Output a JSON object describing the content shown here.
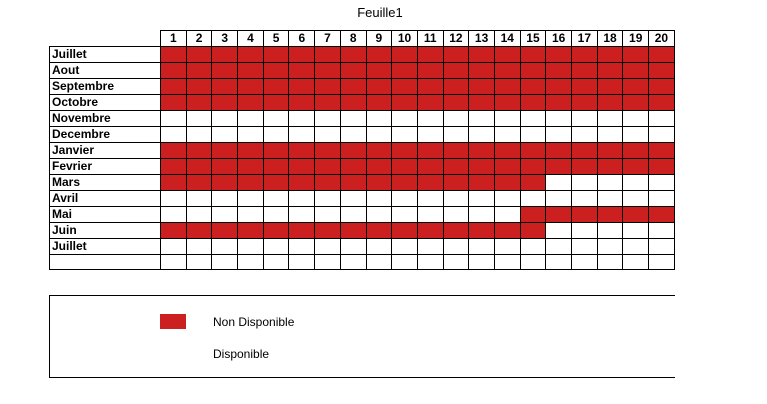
{
  "sheet": {
    "title": "Feuille1"
  },
  "colors": {
    "unavailable": "#cc1f1f",
    "available": "#ffffff"
  },
  "days": [
    "1",
    "2",
    "3",
    "4",
    "5",
    "6",
    "7",
    "8",
    "9",
    "10",
    "11",
    "12",
    "13",
    "14",
    "15",
    "16",
    "17",
    "18",
    "19",
    "20"
  ],
  "rows": [
    {
      "month": "Juillet",
      "unavailable": [
        1,
        1,
        1,
        1,
        1,
        1,
        1,
        1,
        1,
        1,
        1,
        1,
        1,
        1,
        1,
        1,
        1,
        1,
        1,
        1
      ]
    },
    {
      "month": "Aout",
      "unavailable": [
        1,
        1,
        1,
        1,
        1,
        1,
        1,
        1,
        1,
        1,
        1,
        1,
        1,
        1,
        1,
        1,
        1,
        1,
        1,
        1
      ]
    },
    {
      "month": "Septembre",
      "unavailable": [
        1,
        1,
        1,
        1,
        1,
        1,
        1,
        1,
        1,
        1,
        1,
        1,
        1,
        1,
        1,
        1,
        1,
        1,
        1,
        1
      ]
    },
    {
      "month": "Octobre",
      "unavailable": [
        1,
        1,
        1,
        1,
        1,
        1,
        1,
        1,
        1,
        1,
        1,
        1,
        1,
        1,
        1,
        1,
        1,
        1,
        1,
        1
      ]
    },
    {
      "month": "Novembre",
      "unavailable": [
        0,
        0,
        0,
        0,
        0,
        0,
        0,
        0,
        0,
        0,
        0,
        0,
        0,
        0,
        0,
        0,
        0,
        0,
        0,
        0
      ]
    },
    {
      "month": "Decembre",
      "unavailable": [
        0,
        0,
        0,
        0,
        0,
        0,
        0,
        0,
        0,
        0,
        0,
        0,
        0,
        0,
        0,
        0,
        0,
        0,
        0,
        0
      ]
    },
    {
      "month": "Janvier",
      "unavailable": [
        1,
        1,
        1,
        1,
        1,
        1,
        1,
        1,
        1,
        1,
        1,
        1,
        1,
        1,
        1,
        1,
        1,
        1,
        1,
        1
      ]
    },
    {
      "month": "Fevrier",
      "unavailable": [
        1,
        1,
        1,
        1,
        1,
        1,
        1,
        1,
        1,
        1,
        1,
        1,
        1,
        1,
        1,
        1,
        1,
        1,
        1,
        1
      ]
    },
    {
      "month": "Mars",
      "unavailable": [
        1,
        1,
        1,
        1,
        1,
        1,
        1,
        1,
        1,
        1,
        1,
        1,
        1,
        1,
        1,
        0,
        0,
        0,
        0,
        0
      ]
    },
    {
      "month": "Avril",
      "unavailable": [
        0,
        0,
        0,
        0,
        0,
        0,
        0,
        0,
        0,
        0,
        0,
        0,
        0,
        0,
        0,
        0,
        0,
        0,
        0,
        0
      ]
    },
    {
      "month": "Mai",
      "unavailable": [
        0,
        0,
        0,
        0,
        0,
        0,
        0,
        0,
        0,
        0,
        0,
        0,
        0,
        0,
        1,
        1,
        1,
        1,
        1,
        1
      ]
    },
    {
      "month": "Juin",
      "unavailable": [
        1,
        1,
        1,
        1,
        1,
        1,
        1,
        1,
        1,
        1,
        1,
        1,
        1,
        1,
        1,
        0,
        0,
        0,
        0,
        0
      ]
    },
    {
      "month": "Juillet",
      "unavailable": [
        0,
        0,
        0,
        0,
        0,
        0,
        0,
        0,
        0,
        0,
        0,
        0,
        0,
        0,
        0,
        0,
        0,
        0,
        0,
        0
      ]
    },
    {
      "month": "",
      "unavailable": [
        0,
        0,
        0,
        0,
        0,
        0,
        0,
        0,
        0,
        0,
        0,
        0,
        0,
        0,
        0,
        0,
        0,
        0,
        0,
        0
      ]
    }
  ],
  "legend": {
    "unavailable_label": "Non Disponible",
    "available_label": "Disponible"
  }
}
